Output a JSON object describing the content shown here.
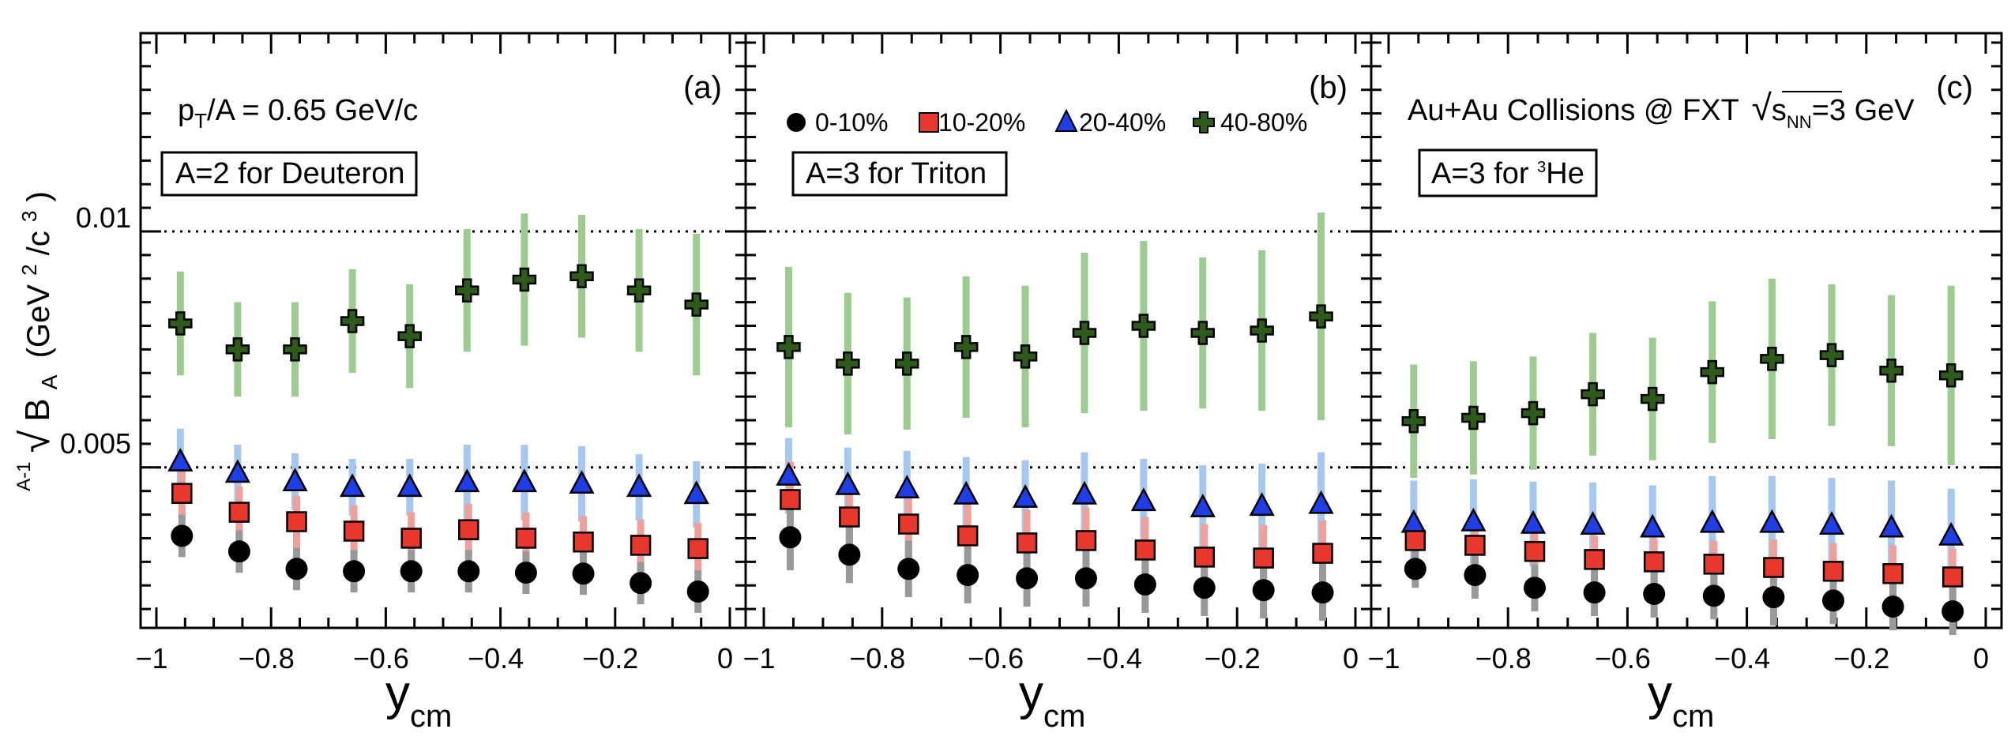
{
  "figure": {
    "ylabel_prefix": "A-1",
    "ylabel_b": "B",
    "ylabel_a": "A",
    "ylabel_unit_open": "(GeV",
    "ylabel_unit_exp1": "2",
    "ylabel_unit_mid": "/c",
    "ylabel_unit_exp2": "3",
    "ylabel_unit_close": ")",
    "xlabel_main": "y",
    "xlabel_sub": "cm",
    "annotation_pt_main": "p",
    "annotation_pt_sub": "T",
    "annotation_pt_rest": "/A = 0.65 GeV/c",
    "annotation_collisions_pre": "Au+Au Collisions @ FXT",
    "annotation_collisions_s": "s",
    "annotation_collisions_nn": "NN",
    "annotation_collisions_post": "=3 GeV",
    "legend": [
      "0-10%",
      "10-20%",
      "20-40%",
      "40-80%"
    ],
    "panels": [
      {
        "letter": "(a)",
        "label_pre": "A=2 for Deuteron",
        "label_sup": "",
        "label_post": ""
      },
      {
        "letter": "(b)",
        "label_pre": "A=3 for Triton",
        "label_sup": "",
        "label_post": ""
      },
      {
        "letter": "(c)",
        "label_pre": "A=3 for ",
        "label_sup": "3",
        "label_post": "He"
      }
    ],
    "x_tick_labels": [
      "−1",
      "−0.8",
      "−0.6",
      "−0.4",
      "−0.2",
      "0"
    ],
    "y_tick_labels": [
      "0.005",
      "0.01"
    ]
  },
  "chart_data": {
    "type": "scatter",
    "xlabel": "y_cm",
    "ylabel": "A-1√B_A (GeV^2/c^3)",
    "xlim": [
      -1.05,
      0.01
    ],
    "ylim": [
      0.0016,
      0.0142
    ],
    "x_ticks": [
      -1,
      -0.8,
      -0.6,
      -0.4,
      -0.2,
      0
    ],
    "y_ticks": [
      0.005,
      0.01
    ],
    "reference_lines": [
      0.005,
      0.01
    ],
    "colors": {
      "0-10%": "#000000",
      "10-20%": "#e8372c",
      "20-40%": "#1f3ee6",
      "40-80%": "#2e5a1c"
    },
    "error_colors": {
      "0-10%": "#999999",
      "10-20%": "#f0a09a",
      "20-40%": "#a6c8f0",
      "40-80%": "#9ccc8f"
    },
    "x": [
      -0.95,
      -0.85,
      -0.75,
      -0.65,
      -0.55,
      -0.45,
      -0.35,
      -0.25,
      -0.15,
      -0.05
    ],
    "panels": [
      {
        "name": "Deuteron",
        "series": [
          {
            "name": "0-10%",
            "values": [
              0.00355,
              0.00322,
              0.00285,
              0.0028,
              0.0028,
              0.0028,
              0.00277,
              0.00275,
              0.00255,
              0.00237
            ],
            "err": [
              0.00045,
              0.00045,
              0.00045,
              0.00045,
              0.00045,
              0.00045,
              0.00045,
              0.00045,
              0.00045,
              0.00045
            ]
          },
          {
            "name": "10-20%",
            "values": [
              0.00445,
              0.00405,
              0.00385,
              0.00365,
              0.0035,
              0.00368,
              0.0035,
              0.00342,
              0.00335,
              0.00328
            ],
            "err": [
              0.00055,
              0.00055,
              0.00055,
              0.00055,
              0.00055,
              0.00055,
              0.00055,
              0.00055,
              0.00055,
              0.00055
            ]
          },
          {
            "name": "20-40%",
            "values": [
              0.00512,
              0.00488,
              0.0047,
              0.00458,
              0.00458,
              0.00468,
              0.00468,
              0.00465,
              0.00458,
              0.00443
            ],
            "err": [
              0.0007,
              0.0006,
              0.0006,
              0.0006,
              0.0006,
              0.0008,
              0.0008,
              0.0008,
              0.0007,
              0.0007
            ]
          },
          {
            "name": "40-80%",
            "values": [
              0.00805,
              0.0075,
              0.0075,
              0.0081,
              0.00778,
              0.00875,
              0.00898,
              0.00905,
              0.00875,
              0.00845
            ],
            "err": [
              0.0011,
              0.001,
              0.001,
              0.0011,
              0.0011,
              0.0013,
              0.0014,
              0.0013,
              0.0013,
              0.0015
            ]
          }
        ]
      },
      {
        "name": "Triton",
        "series": [
          {
            "name": "0-10%",
            "values": [
              0.00352,
              0.00315,
              0.00285,
              0.00272,
              0.00265,
              0.00265,
              0.00252,
              0.00245,
              0.0024,
              0.00235
            ],
            "err": [
              0.0007,
              0.0006,
              0.0006,
              0.0006,
              0.0006,
              0.0006,
              0.0006,
              0.0006,
              0.0006,
              0.0006
            ]
          },
          {
            "name": "10-20%",
            "values": [
              0.00432,
              0.00395,
              0.0038,
              0.00355,
              0.0034,
              0.00345,
              0.00325,
              0.0031,
              0.00308,
              0.00318
            ],
            "err": [
              0.0008,
              0.0007,
              0.0007,
              0.0007,
              0.0007,
              0.0007,
              0.0007,
              0.0007,
              0.0007,
              0.0007
            ]
          },
          {
            "name": "20-40%",
            "values": [
              0.00482,
              0.00462,
              0.00455,
              0.00442,
              0.00435,
              0.00442,
              0.00428,
              0.00415,
              0.00418,
              0.00422
            ],
            "err": [
              0.0008,
              0.0008,
              0.0008,
              0.0008,
              0.0008,
              0.0009,
              0.0009,
              0.0009,
              0.0009,
              0.0011
            ]
          },
          {
            "name": "40-80%",
            "values": [
              0.00755,
              0.0072,
              0.0072,
              0.00755,
              0.00735,
              0.00785,
              0.008,
              0.00785,
              0.0079,
              0.0082
            ],
            "err": [
              0.0017,
              0.0015,
              0.0014,
              0.0015,
              0.0015,
              0.0017,
              0.0018,
              0.0016,
              0.0017,
              0.0022
            ]
          }
        ]
      },
      {
        "name": "3He",
        "series": [
          {
            "name": "0-10%",
            "values": [
              0.00285,
              0.00272,
              0.00245,
              0.00235,
              0.00232,
              0.00228,
              0.00225,
              0.00218,
              0.00205,
              0.00195
            ],
            "err": [
              0.0004,
              0.0005,
              0.0005,
              0.0005,
              0.0005,
              0.0005,
              0.0006,
              0.0005,
              0.0005,
              0.0005
            ]
          },
          {
            "name": "10-20%",
            "values": [
              0.00345,
              0.00335,
              0.00322,
              0.00305,
              0.003,
              0.00295,
              0.00288,
              0.0028,
              0.00275,
              0.00268
            ],
            "err": [
              0.0005,
              0.0005,
              0.0005,
              0.0005,
              0.0005,
              0.0005,
              0.0006,
              0.0006,
              0.0006,
              0.0006
            ]
          },
          {
            "name": "20-40%",
            "values": [
              0.00382,
              0.00385,
              0.0038,
              0.00378,
              0.00372,
              0.00382,
              0.00382,
              0.00378,
              0.00372,
              0.00355
            ],
            "err": [
              0.0009,
              0.0009,
              0.0009,
              0.0009,
              0.0009,
              0.001,
              0.001,
              0.001,
              0.001,
              0.001
            ]
          },
          {
            "name": "40-80%",
            "values": [
              0.00598,
              0.00605,
              0.00615,
              0.00655,
              0.00645,
              0.00702,
              0.0073,
              0.00738,
              0.00705,
              0.00695
            ],
            "err": [
              0.0012,
              0.0012,
              0.0012,
              0.0013,
              0.0013,
              0.0015,
              0.0017,
              0.0015,
              0.0016,
              0.0019
            ]
          }
        ]
      }
    ]
  }
}
